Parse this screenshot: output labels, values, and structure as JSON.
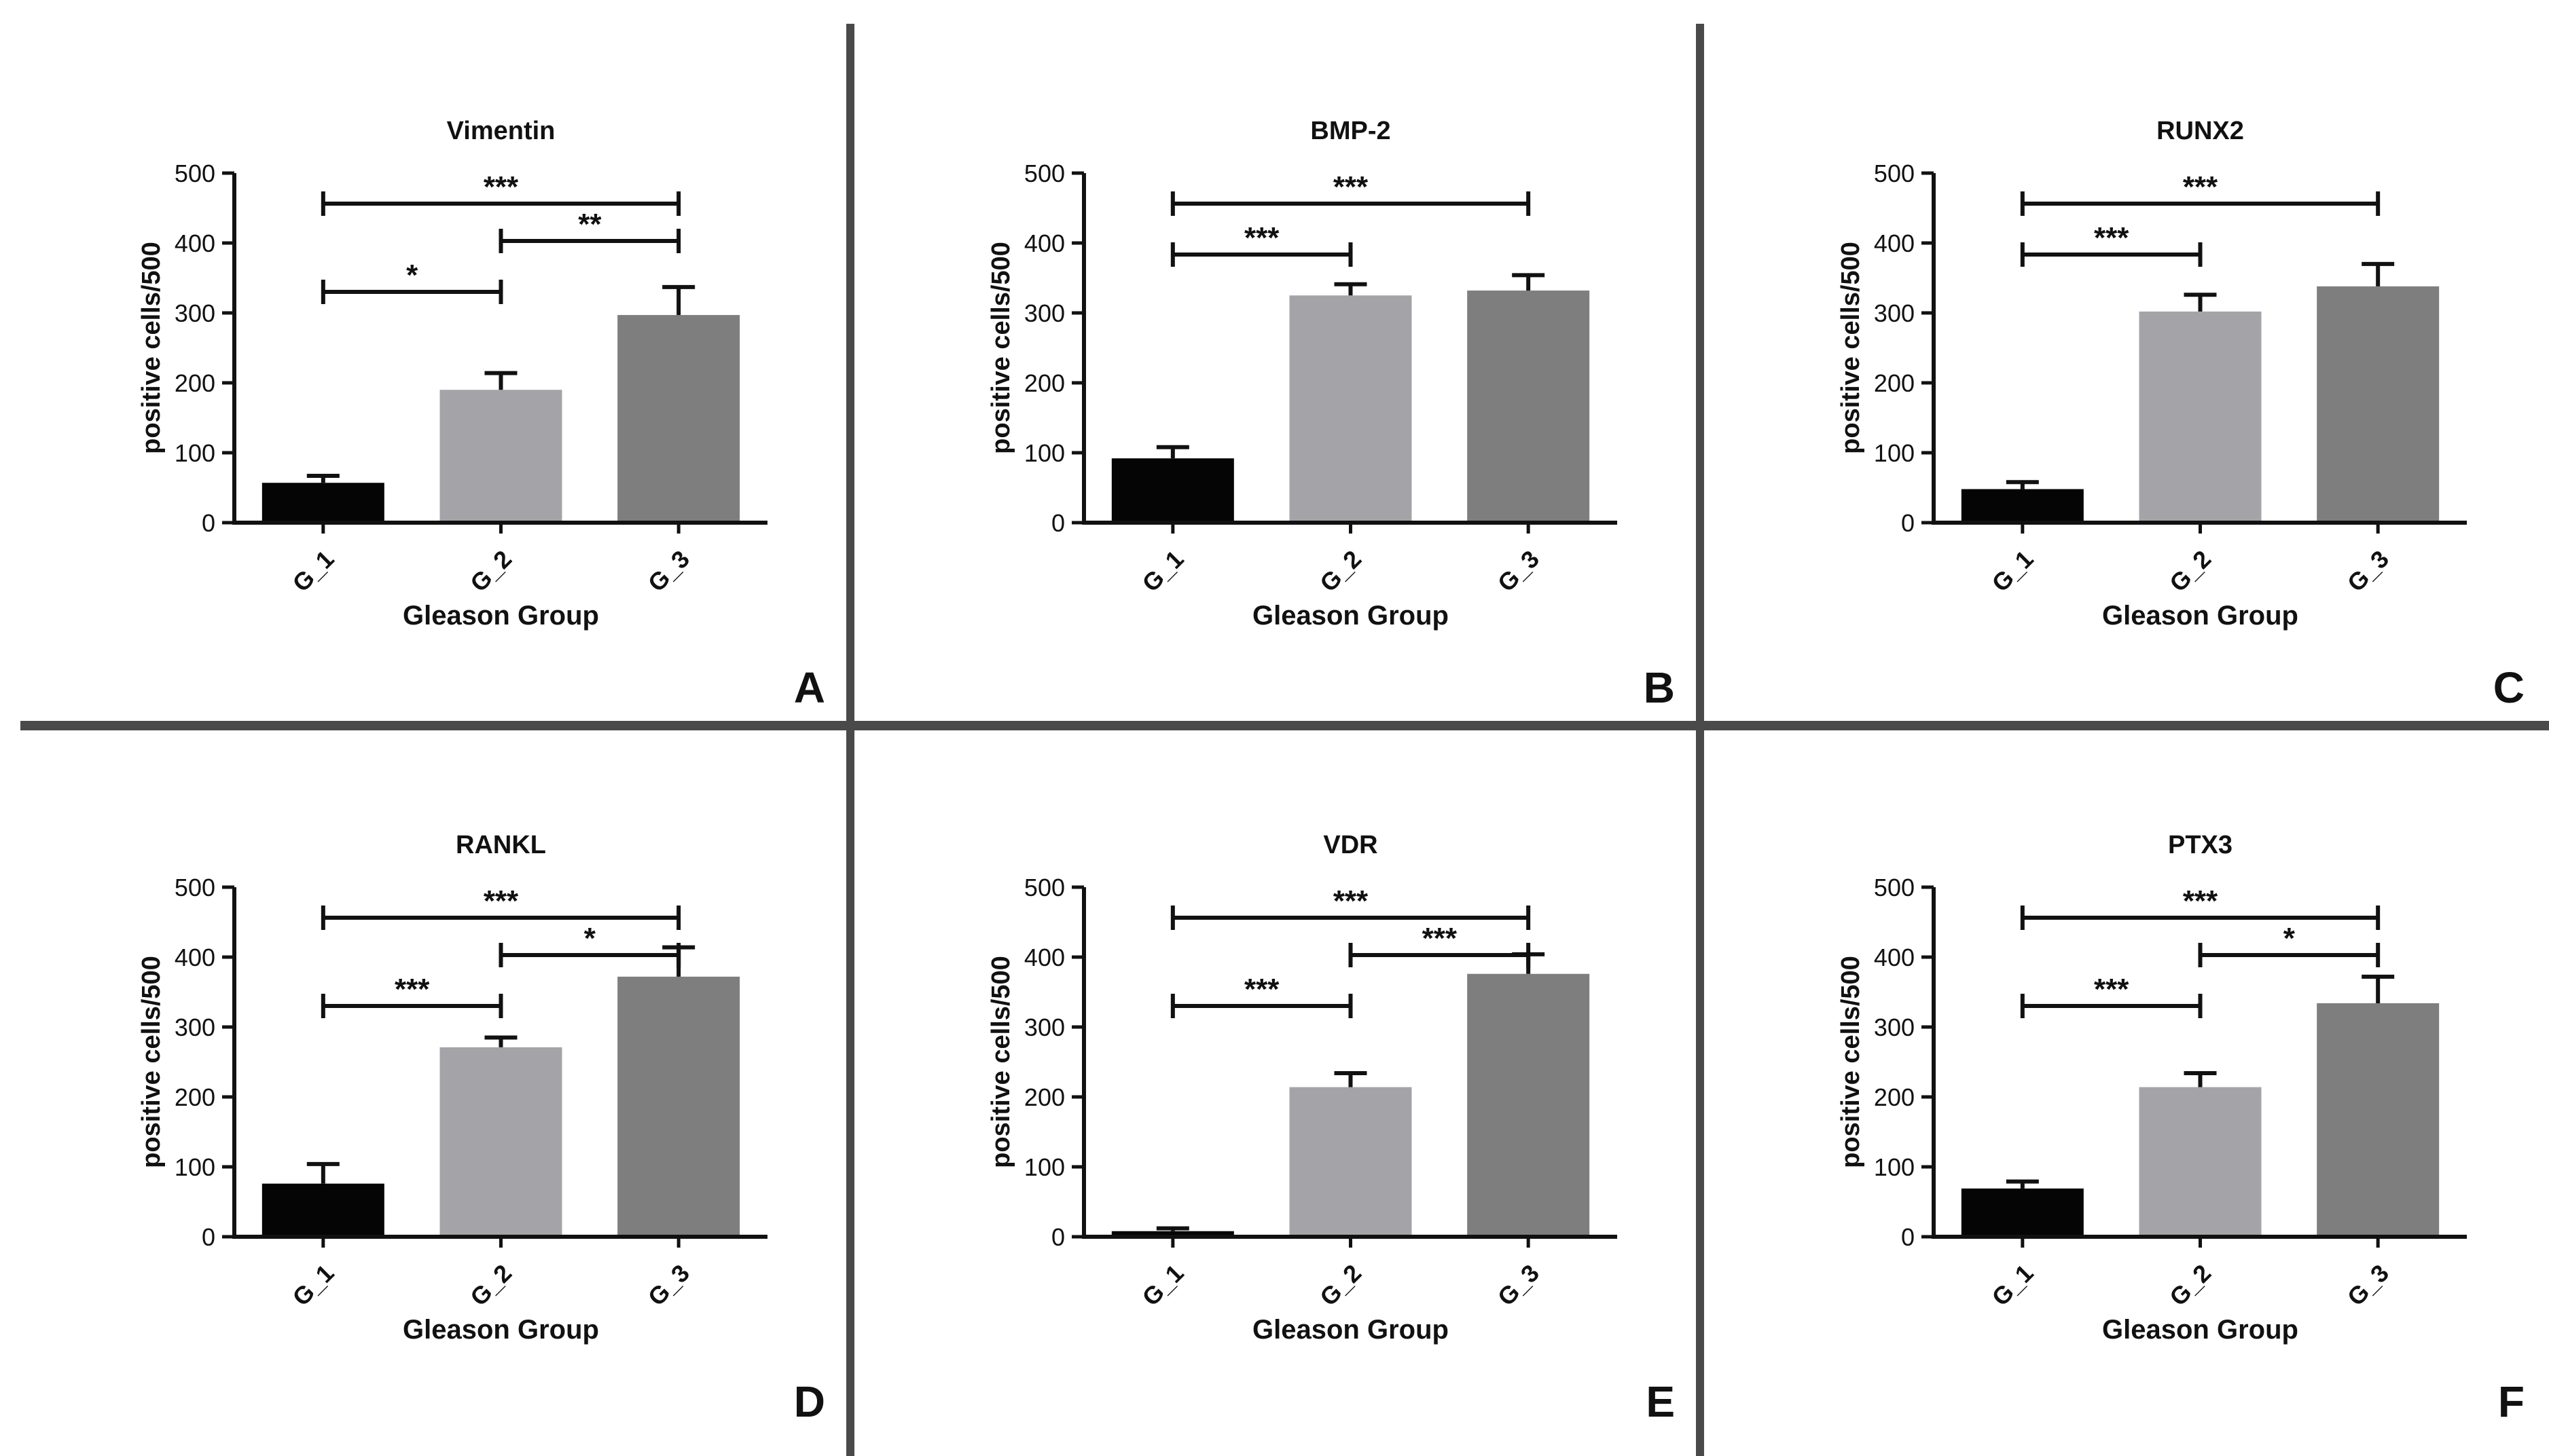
{
  "figure": {
    "divider_color": "#4a4a4a"
  },
  "panels": [
    {
      "letter": "A",
      "sig_brackets": [
        {
          "from": 0,
          "to": 2,
          "label": "***"
        },
        {
          "from": 1,
          "to": 2,
          "label": "**"
        },
        {
          "from": 0,
          "to": 1,
          "label": "*"
        }
      ]
    },
    {
      "letter": "B",
      "sig_brackets": [
        {
          "from": 0,
          "to": 2,
          "label": "***"
        },
        {
          "from": 0,
          "to": 1,
          "label": "***"
        }
      ]
    },
    {
      "letter": "C",
      "sig_brackets": [
        {
          "from": 0,
          "to": 2,
          "label": "***"
        },
        {
          "from": 0,
          "to": 1,
          "label": "***"
        }
      ]
    },
    {
      "letter": "D",
      "sig_brackets": [
        {
          "from": 0,
          "to": 2,
          "label": "***"
        },
        {
          "from": 1,
          "to": 2,
          "label": "*"
        },
        {
          "from": 0,
          "to": 1,
          "label": "***"
        }
      ]
    },
    {
      "letter": "E",
      "sig_brackets": [
        {
          "from": 0,
          "to": 2,
          "label": "***"
        },
        {
          "from": 1,
          "to": 2,
          "label": "***"
        },
        {
          "from": 0,
          "to": 1,
          "label": "***"
        }
      ]
    },
    {
      "letter": "F",
      "sig_brackets": [
        {
          "from": 0,
          "to": 2,
          "label": "***"
        },
        {
          "from": 1,
          "to": 2,
          "label": "*"
        },
        {
          "from": 0,
          "to": 1,
          "label": "***"
        }
      ]
    }
  ],
  "chart_data": [
    {
      "type": "bar",
      "title": "Vimentin",
      "xlabel": "Gleason Group",
      "ylabel": "positive cells/500",
      "ylim": [
        0,
        500
      ],
      "yticks": [
        0,
        100,
        200,
        300,
        400,
        500
      ],
      "categories": [
        "G_1",
        "G_2",
        "G_3"
      ],
      "values": [
        57,
        190,
        297
      ],
      "errors": [
        10,
        24,
        40
      ],
      "colors": [
        "#050505",
        "#a4a4a8",
        "#7e7e7e"
      ]
    },
    {
      "type": "bar",
      "title": "BMP-2",
      "xlabel": "Gleason Group",
      "ylabel": "positive cells/500",
      "ylim": [
        0,
        500
      ],
      "yticks": [
        0,
        100,
        200,
        300,
        400,
        500
      ],
      "categories": [
        "G_1",
        "G_2",
        "G_3"
      ],
      "values": [
        92,
        325,
        332
      ],
      "errors": [
        16,
        16,
        22
      ],
      "colors": [
        "#050505",
        "#a4a4a8",
        "#7e7e7e"
      ]
    },
    {
      "type": "bar",
      "title": "RUNX2",
      "xlabel": "Gleason Group",
      "ylabel": "positive cells/500",
      "ylim": [
        0,
        500
      ],
      "yticks": [
        0,
        100,
        200,
        300,
        400,
        500
      ],
      "categories": [
        "G_1",
        "G_2",
        "G_3"
      ],
      "values": [
        48,
        302,
        338
      ],
      "errors": [
        10,
        24,
        32
      ],
      "colors": [
        "#050505",
        "#a4a4a8",
        "#7e7e7e"
      ]
    },
    {
      "type": "bar",
      "title": "RANKL",
      "xlabel": "Gleason Group",
      "ylabel": "positive cells/500",
      "ylim": [
        0,
        500
      ],
      "yticks": [
        0,
        100,
        200,
        300,
        400,
        500
      ],
      "categories": [
        "G_1",
        "G_2",
        "G_3"
      ],
      "values": [
        76,
        271,
        372
      ],
      "errors": [
        28,
        14,
        42
      ],
      "colors": [
        "#050505",
        "#a4a4a8",
        "#7e7e7e"
      ]
    },
    {
      "type": "bar",
      "title": "VDR",
      "xlabel": "Gleason Group",
      "ylabel": "positive cells/500",
      "ylim": [
        0,
        500
      ],
      "yticks": [
        0,
        100,
        200,
        300,
        400,
        500
      ],
      "categories": [
        "G_1",
        "G_2",
        "G_3"
      ],
      "values": [
        8,
        214,
        376
      ],
      "errors": [
        4,
        20,
        28
      ],
      "colors": [
        "#050505",
        "#a4a4a8",
        "#7e7e7e"
      ]
    },
    {
      "type": "bar",
      "title": "PTX3",
      "xlabel": "Gleason Group",
      "ylabel": "positive cells/500",
      "ylim": [
        0,
        500
      ],
      "yticks": [
        0,
        100,
        200,
        300,
        400,
        500
      ],
      "categories": [
        "G_1",
        "G_2",
        "G_3"
      ],
      "values": [
        69,
        214,
        334
      ],
      "errors": [
        10,
        20,
        38
      ],
      "colors": [
        "#050505",
        "#a4a4a8",
        "#7e7e7e"
      ]
    }
  ]
}
